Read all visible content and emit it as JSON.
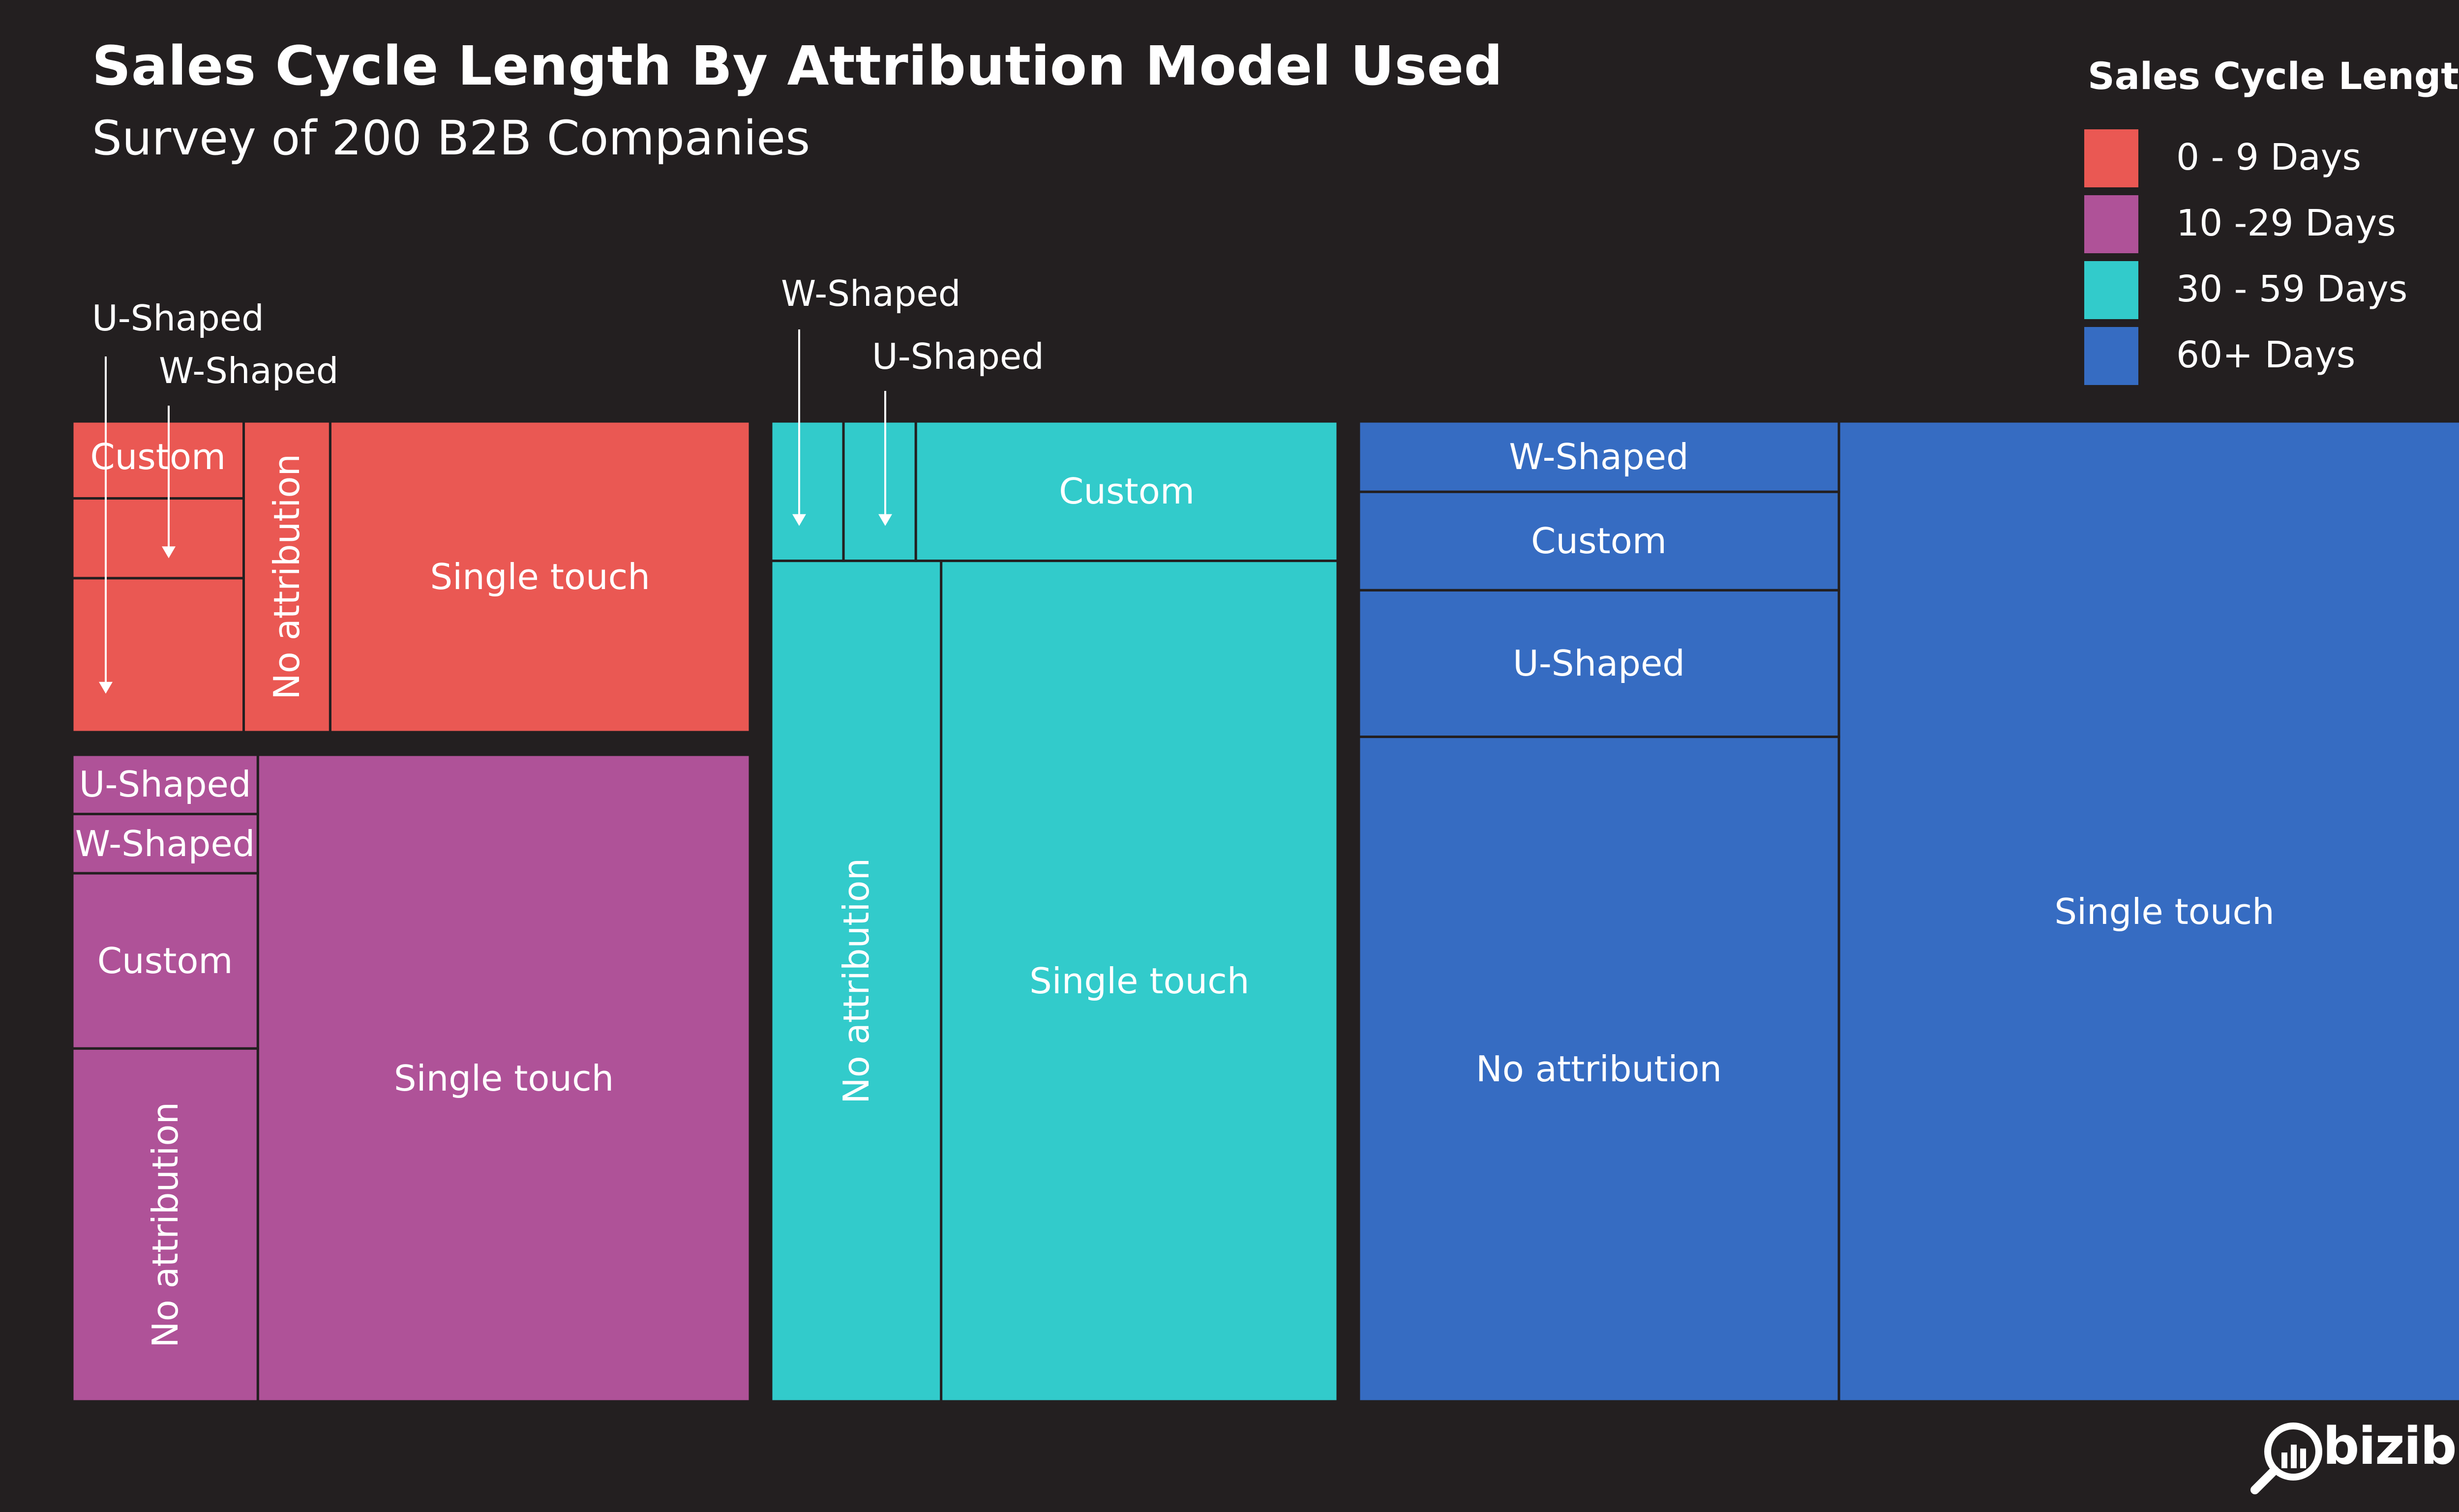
{
  "chart_data": {
    "type": "treemap",
    "title": "Sales Cycle Length By Attribution Model Used",
    "subtitle": "Survey of 200 B2B Companies",
    "legend": {
      "title": "Sales Cycle Length",
      "placement": "top-right",
      "items": [
        {
          "label": "0 - 9 Days",
          "color": "#ea5853"
        },
        {
          "label": "10 -29 Days",
          "color": "#af5298"
        },
        {
          "label": "30 - 59 Days",
          "color": "#32cbcb"
        },
        {
          "label": "60+ Days",
          "color": "#366cc2"
        }
      ]
    },
    "series": [
      {
        "name": "0 - 9 Days",
        "color": "#ea5853",
        "values": [
          {
            "label": "Single touch",
            "value": 26.7
          },
          {
            "label": "No attribution",
            "value": 5.5
          },
          {
            "label": "Custom",
            "value": 2.7
          },
          {
            "label": "W-Shaped",
            "value": 2.8
          },
          {
            "label": "U-Shaped",
            "value": 5.4
          }
        ]
      },
      {
        "name": "10 -29 Days",
        "color": "#af5298",
        "values": [
          {
            "label": "Single touch",
            "value": 69.5
          },
          {
            "label": "No attribution",
            "value": 14.3
          },
          {
            "label": "Custom",
            "value": 7.1
          },
          {
            "label": "W-Shaped",
            "value": 2.4
          },
          {
            "label": "U-Shaped",
            "value": 2.4
          }
        ]
      },
      {
        "name": "30 - 59 Days",
        "color": "#32cbcb",
        "values": [
          {
            "label": "Single touch",
            "value": 59.5
          },
          {
            "label": "No attribution",
            "value": 25.5
          },
          {
            "label": "Custom",
            "value": 10.5
          },
          {
            "label": "W-Shaped",
            "value": 1.8
          },
          {
            "label": "U-Shaped",
            "value": 1.8
          }
        ]
      },
      {
        "name": "60+ Days",
        "color": "#366cc2",
        "values": [
          {
            "label": "Single touch",
            "value": 137.8
          },
          {
            "label": "No attribution",
            "value": 68.9
          },
          {
            "label": "U-Shaped",
            "value": 15.2
          },
          {
            "label": "Custom",
            "value": 10.2
          },
          {
            "label": "W-Shaped",
            "value": 7.3
          }
        ]
      }
    ],
    "callouts": [
      "U-Shaped",
      "W-Shaped",
      "W-Shaped",
      "U-Shaped"
    ]
  },
  "brand": {
    "name": "bizible",
    "icon": "magnifier-bar-chart-icon"
  },
  "colors": {
    "background": "#231f20",
    "separator": "#231f20",
    "text": "#ffffff"
  }
}
